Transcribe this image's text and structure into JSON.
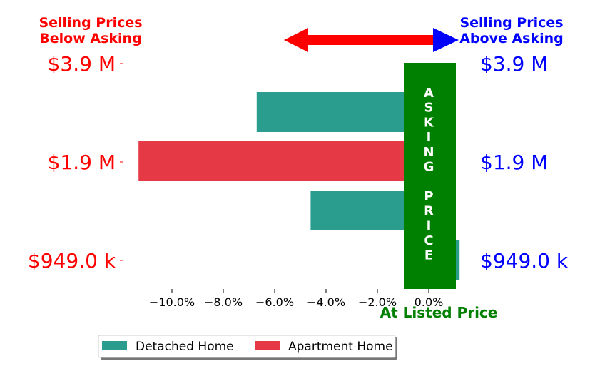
{
  "chart_data": {
    "type": "bar",
    "orientation": "horizontal",
    "categories": [
      "$949.0 k",
      "",
      "$1.9 M",
      "",
      "$3.9 M"
    ],
    "series": [
      {
        "name": "Detached Home",
        "color": "#2a9d8f",
        "points": [
          {
            "price_category": "$949.0 k",
            "value": 1.2
          },
          {
            "price_category": "between $949.0 k and $1.9 M",
            "value": -4.6
          },
          {
            "price_category": "between $1.9 M and $3.9 M",
            "value": -6.7
          }
        ]
      },
      {
        "name": "Apartment Home",
        "color": "#e63946",
        "points": [
          {
            "price_category": "$1.9 M",
            "value": -11.3
          }
        ]
      }
    ],
    "xlim": [
      -11.5,
      1.2
    ],
    "x_ticks": [
      "−10.0%",
      "−8.0%",
      "−6.0%",
      "−4.0%",
      "−2.0%",
      "0.0%"
    ],
    "x_tick_values": [
      -10,
      -8,
      -6,
      -4,
      -2,
      0
    ],
    "left_labels": [
      "$3.9 M",
      "$1.9 M",
      "$949.0 k"
    ],
    "right_labels": [
      "$3.9 M",
      "$1.9 M",
      "$949.0 k"
    ],
    "left_header": [
      "Selling Prices",
      "Below Asking"
    ],
    "right_header": [
      "Selling Prices",
      "Above Asking"
    ],
    "asking_band_text": [
      "A",
      "S",
      "K",
      "I",
      "N",
      "G",
      "",
      "P",
      "R",
      "I",
      "C",
      "E"
    ],
    "xlabel": "At Listed Price",
    "legend": {
      "placement": "bottom-center",
      "entries": [
        "Detached Home",
        "Apartment Home"
      ]
    },
    "colors": {
      "below": "#ff0000",
      "above": "#0000ff",
      "asking": "#008000",
      "detached": "#2a9d8f",
      "apartment": "#e63946"
    },
    "grid": false
  }
}
